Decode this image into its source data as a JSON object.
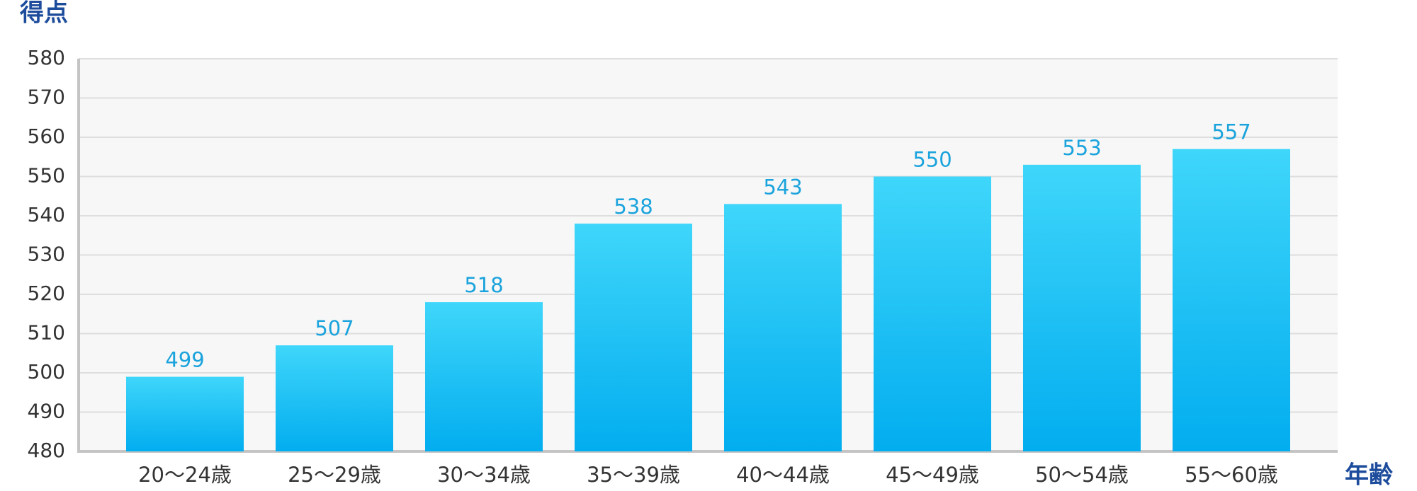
{
  "chart_data": {
    "type": "bar",
    "title": "得点",
    "x_label": "年齢",
    "categories": [
      "20〜24歳",
      "25〜29歳",
      "30〜34歳",
      "35〜39歳",
      "40〜44歳",
      "45〜49歳",
      "50〜54歳",
      "55〜60歳"
    ],
    "values": [
      499,
      507,
      518,
      538,
      543,
      550,
      553,
      557
    ],
    "gradient": [
      "#3fd6fa",
      "#02adef"
    ],
    "label_color": "#1aa3dc",
    "ylim": [
      480,
      580
    ],
    "yticks": [
      480,
      490,
      500,
      510,
      520,
      530,
      540,
      550,
      560,
      570,
      580
    ],
    "grid": true
  }
}
